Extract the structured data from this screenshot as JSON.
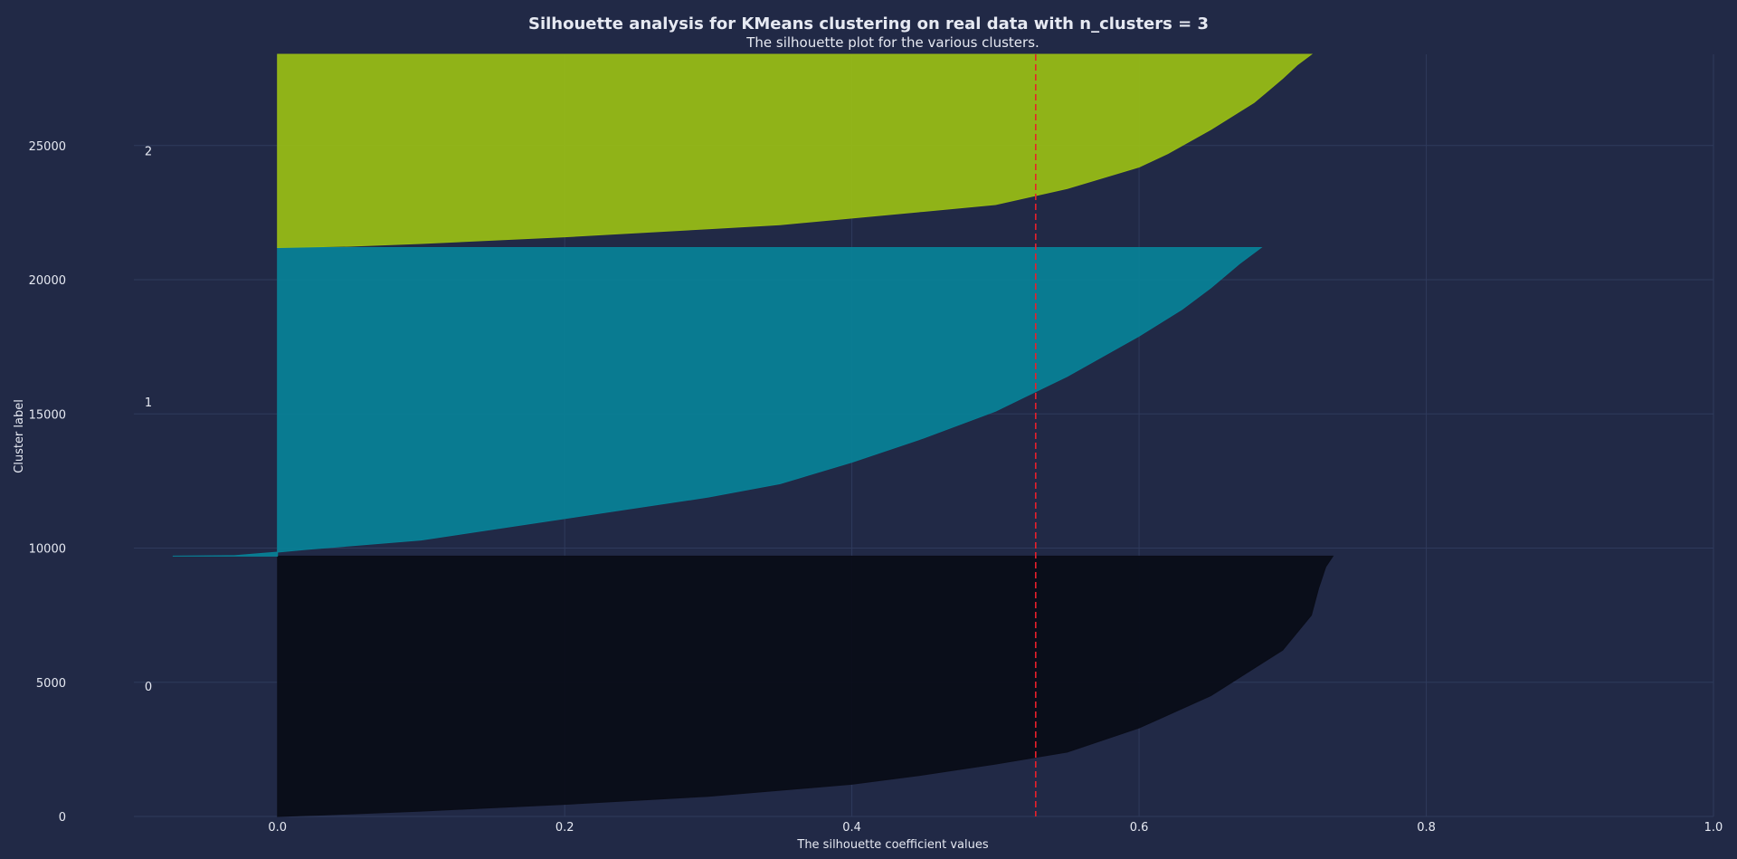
{
  "chart_data": {
    "type": "area",
    "title": "Silhouette analysis for KMeans clustering on real data with n_clusters = 3",
    "subtitle": "The silhouette plot for the various clusters.",
    "xlabel": "The silhouette coefficient values",
    "ylabel": "Cluster label",
    "xlim": [
      -0.1,
      1.0
    ],
    "ylim": [
      0,
      28400
    ],
    "xticks": [
      "0.0",
      "0.2",
      "0.4",
      "0.6",
      "0.8",
      "1.0"
    ],
    "yticks": [
      "0",
      "5000",
      "10000",
      "15000",
      "20000",
      "25000"
    ],
    "grid": true,
    "average_silhouette_score": 0.528,
    "series": [
      {
        "name": "0",
        "color": "#0a0d18",
        "y_lower": 0,
        "y_upper": 9700,
        "points": [
          [
            0,
            0
          ],
          [
            0.03,
            50
          ],
          [
            0.1,
            200
          ],
          [
            0.2,
            450
          ],
          [
            0.3,
            750
          ],
          [
            0.4,
            1200
          ],
          [
            0.45,
            1550
          ],
          [
            0.5,
            1950
          ],
          [
            0.55,
            2400
          ],
          [
            0.6,
            3300
          ],
          [
            0.65,
            4500
          ],
          [
            0.7,
            6200
          ],
          [
            0.72,
            7500
          ],
          [
            0.725,
            8500
          ],
          [
            0.73,
            9300
          ],
          [
            0.735,
            9700
          ]
        ]
      },
      {
        "name": "1",
        "color": "#088096",
        "y_lower": 9700,
        "y_upper": 21200,
        "points": [
          [
            -0.073,
            9700
          ],
          [
            -0.03,
            9720
          ],
          [
            0,
            9850
          ],
          [
            0.02,
            9950
          ],
          [
            0.1,
            10300
          ],
          [
            0.2,
            11100
          ],
          [
            0.3,
            11900
          ],
          [
            0.35,
            12400
          ],
          [
            0.4,
            13200
          ],
          [
            0.45,
            14100
          ],
          [
            0.5,
            15100
          ],
          [
            0.55,
            16400
          ],
          [
            0.6,
            17900
          ],
          [
            0.63,
            18900
          ],
          [
            0.65,
            19700
          ],
          [
            0.67,
            20600
          ],
          [
            0.685,
            21200
          ]
        ]
      },
      {
        "name": "2",
        "color": "#97ba16",
        "y_lower": 21200,
        "y_upper": 28400,
        "points": [
          [
            0,
            21200
          ],
          [
            0.05,
            21250
          ],
          [
            0.1,
            21350
          ],
          [
            0.2,
            21600
          ],
          [
            0.3,
            21900
          ],
          [
            0.35,
            22050
          ],
          [
            0.4,
            22300
          ],
          [
            0.45,
            22550
          ],
          [
            0.5,
            22800
          ],
          [
            0.55,
            23400
          ],
          [
            0.6,
            24200
          ],
          [
            0.62,
            24700
          ],
          [
            0.65,
            25600
          ],
          [
            0.68,
            26600
          ],
          [
            0.7,
            27500
          ],
          [
            0.71,
            28000
          ],
          [
            0.72,
            28400
          ]
        ]
      }
    ]
  }
}
